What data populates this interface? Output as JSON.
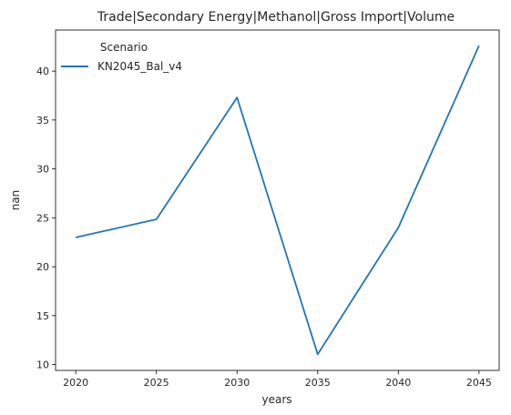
{
  "chart_data": {
    "type": "line",
    "title": "Trade|Secondary Energy|Methanol|Gross Import|Volume",
    "xlabel": "years",
    "ylabel": "nan",
    "x": [
      2020,
      2025,
      2030,
      2035,
      2040,
      2045
    ],
    "xticks": [
      "2020",
      "2025",
      "2030",
      "2035",
      "2040",
      "2045"
    ],
    "yticks": [
      "10",
      "15",
      "20",
      "25",
      "30",
      "35",
      "40"
    ],
    "ylim": [
      9.4,
      44.2
    ],
    "xlim": [
      2018.75,
      2046.25
    ],
    "legend": {
      "title": "Scenario",
      "placement": "top-left"
    },
    "series": [
      {
        "name": "KN2045_Bal_v4",
        "color": "#1f77b4",
        "values": [
          23.0,
          24.85,
          37.3,
          11.05,
          24.0,
          42.6
        ]
      }
    ],
    "grid": false
  }
}
